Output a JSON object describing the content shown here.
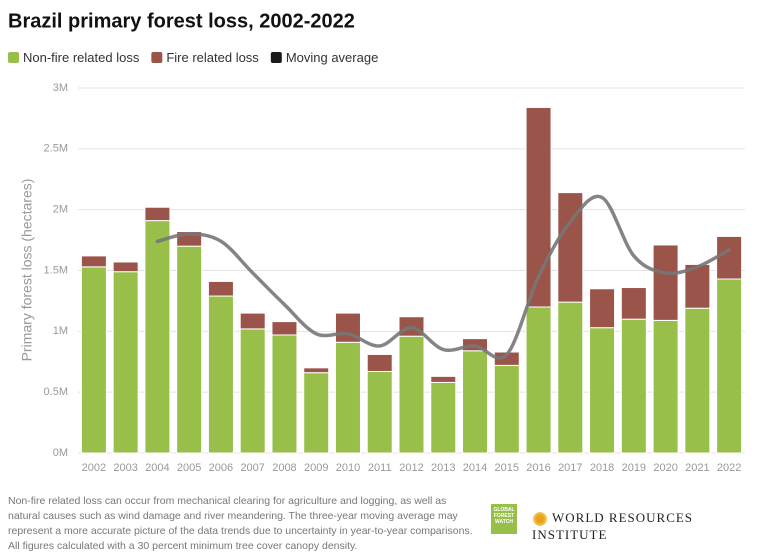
{
  "chart_data": {
    "type": "stacked_bar_line",
    "title": "Brazil primary forest loss, 2002-2022",
    "y_label": "Primary forest loss (hectares)",
    "categories": [
      "2002",
      "2003",
      "2004",
      "2005",
      "2006",
      "2007",
      "2008",
      "2009",
      "2010",
      "2011",
      "2012",
      "2013",
      "2014",
      "2015",
      "2016",
      "2017",
      "2018",
      "2019",
      "2020",
      "2021",
      "2022"
    ],
    "series": [
      {
        "name": "Non-fire related loss",
        "color": "#97bf4a",
        "values": [
          1530000,
          1490000,
          1910000,
          1700000,
          1290000,
          1020000,
          970000,
          660000,
          910000,
          670000,
          960000,
          580000,
          840000,
          720000,
          1200000,
          1240000,
          1030000,
          1100000,
          1090000,
          1190000,
          1430000
        ]
      },
      {
        "name": "Fire related loss",
        "color": "#9b5449",
        "values": [
          90000,
          80000,
          110000,
          120000,
          120000,
          130000,
          110000,
          40000,
          240000,
          140000,
          160000,
          50000,
          100000,
          110000,
          1640000,
          900000,
          320000,
          260000,
          620000,
          360000,
          350000
        ]
      },
      {
        "name": "Moving average",
        "color": "#777777",
        "type": "line",
        "values": [
          null,
          null,
          1740000,
          1800000,
          1740000,
          1480000,
          1220000,
          980000,
          980000,
          880000,
          1030000,
          850000,
          880000,
          810000,
          1450000,
          1900000,
          2100000,
          1620000,
          1480000,
          1530000,
          1670000
        ]
      }
    ],
    "ylim": [
      0,
      3000000
    ],
    "yticks": [
      {
        "value": 0,
        "label": "0M"
      },
      {
        "value": 500000,
        "label": "0.5M"
      },
      {
        "value": 1000000,
        "label": "1M"
      },
      {
        "value": 1500000,
        "label": "1.5M"
      },
      {
        "value": 2000000,
        "label": "2M"
      },
      {
        "value": 2500000,
        "label": "2.5M"
      },
      {
        "value": 3000000,
        "label": "3M"
      }
    ],
    "grid": true,
    "legend": "top-left",
    "note": "Non-fire related loss can occur from mechanical clearing for agriculture and logging, as well as natural causes such as wind damage and river meandering. The three-year moving average may represent a more accurate picture of the data trends due to uncertainty in year-to-year comparisons. All figures calculated with a 30 percent minimum tree cover canopy density.",
    "logo_gfw": "GLOBAL FOREST WATCH",
    "logo_wri": "WORLD RESOURCES INSTITUTE"
  }
}
